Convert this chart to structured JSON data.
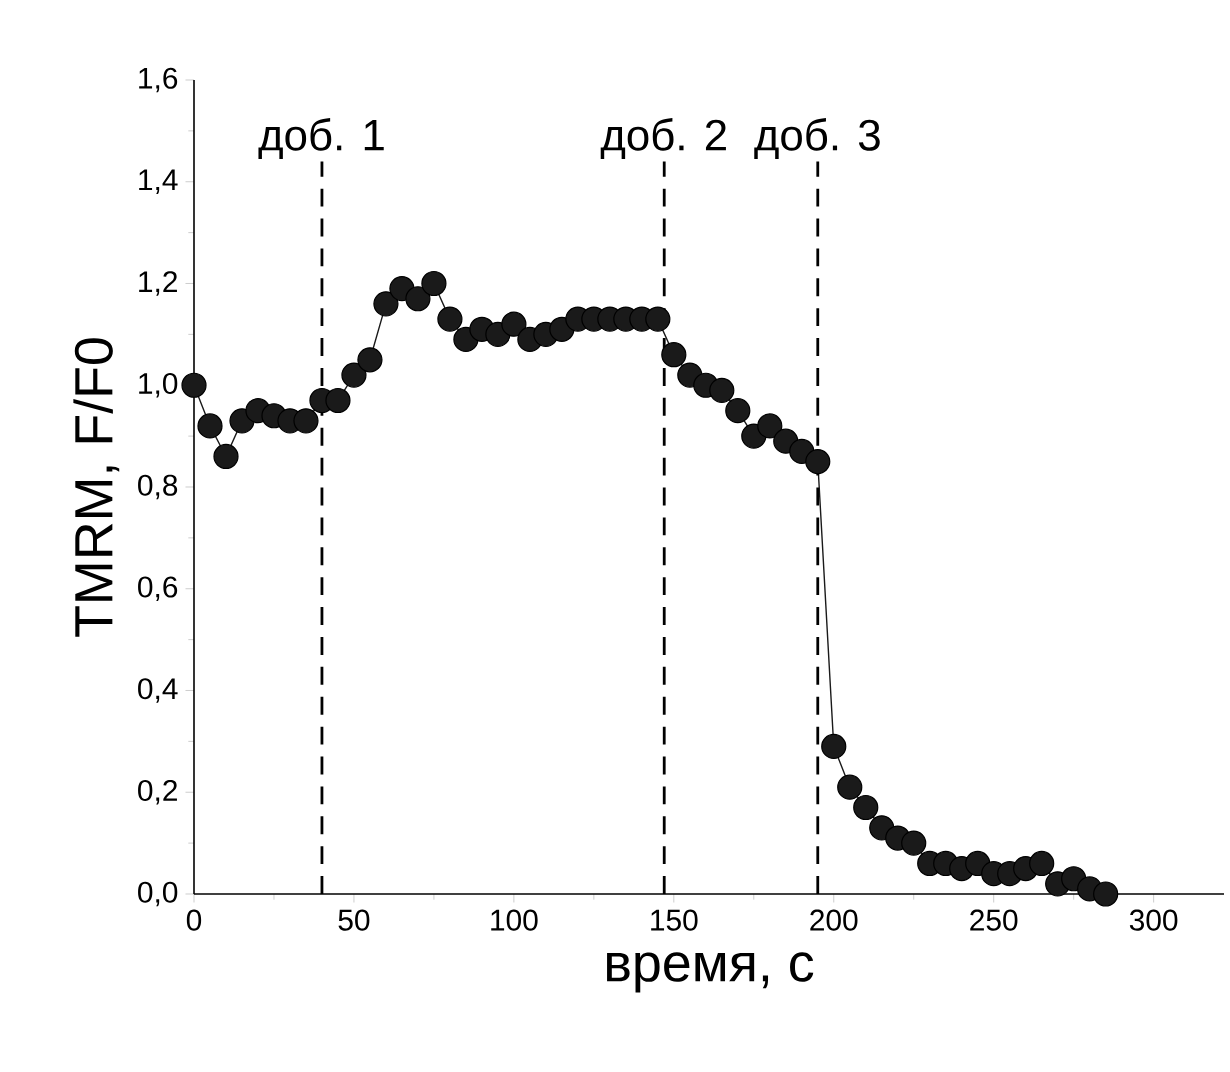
{
  "chart_data": {
    "type": "line",
    "xlabel": "время, с",
    "ylabel": "TMRM, F/F0",
    "x": [
      0,
      5,
      10,
      15,
      20,
      25,
      30,
      35,
      40,
      45,
      50,
      55,
      60,
      65,
      70,
      75,
      80,
      85,
      90,
      95,
      100,
      105,
      110,
      115,
      120,
      125,
      130,
      135,
      140,
      145,
      150,
      155,
      160,
      165,
      170,
      175,
      180,
      185,
      190,
      195,
      200,
      205,
      210,
      215,
      220,
      225,
      230,
      235,
      240,
      245,
      250,
      255,
      260,
      265,
      270,
      275,
      280,
      285
    ],
    "series": [
      {
        "color": "#1a1a1a",
        "values": [
          1.0,
          0.92,
          0.86,
          0.93,
          0.95,
          0.94,
          0.93,
          0.93,
          0.97,
          0.97,
          1.02,
          1.05,
          1.16,
          1.19,
          1.17,
          1.2,
          1.13,
          1.09,
          1.11,
          1.1,
          1.12,
          1.09,
          1.1,
          1.11,
          1.13,
          1.13,
          1.13,
          1.13,
          1.13,
          1.13,
          1.06,
          1.02,
          1.0,
          0.99,
          0.95,
          0.9,
          0.92,
          0.89,
          0.87,
          0.85,
          0.29,
          0.21,
          0.17,
          0.13,
          0.11,
          0.1,
          0.06,
          0.06,
          0.05,
          0.06,
          0.04,
          0.04,
          0.05,
          0.06,
          0.02,
          0.03,
          0.01,
          0.0
        ]
      }
    ],
    "xlim": [
      0,
      322
    ],
    "ylim": [
      0,
      1.6
    ],
    "xticks": [
      0,
      50,
      100,
      150,
      200,
      250,
      300
    ],
    "yticks": [
      {
        "value": 0,
        "label": "0,0"
      },
      {
        "value": 0.2,
        "label": "0,2"
      },
      {
        "value": 0.4,
        "label": "0,4"
      },
      {
        "value": 0.6,
        "label": "0,6"
      },
      {
        "value": 0.8,
        "label": "0,8"
      },
      {
        "value": 1.0,
        "label": "1,0"
      },
      {
        "value": 1.2,
        "label": "1,2"
      },
      {
        "value": 1.4,
        "label": "1,4"
      },
      {
        "value": 1.6,
        "label": "1,6"
      }
    ],
    "ref_lines": [
      {
        "axis": "x",
        "value": 40,
        "label": "доб. 1",
        "line_style": "dashed"
      },
      {
        "axis": "x",
        "value": 147,
        "label": "доб. 2",
        "line_style": "dashed"
      },
      {
        "axis": "x",
        "value": 195,
        "label": "доб. 3",
        "line_style": "dashed"
      }
    ],
    "marker": "circle",
    "line_style": "solid",
    "grid": false
  }
}
